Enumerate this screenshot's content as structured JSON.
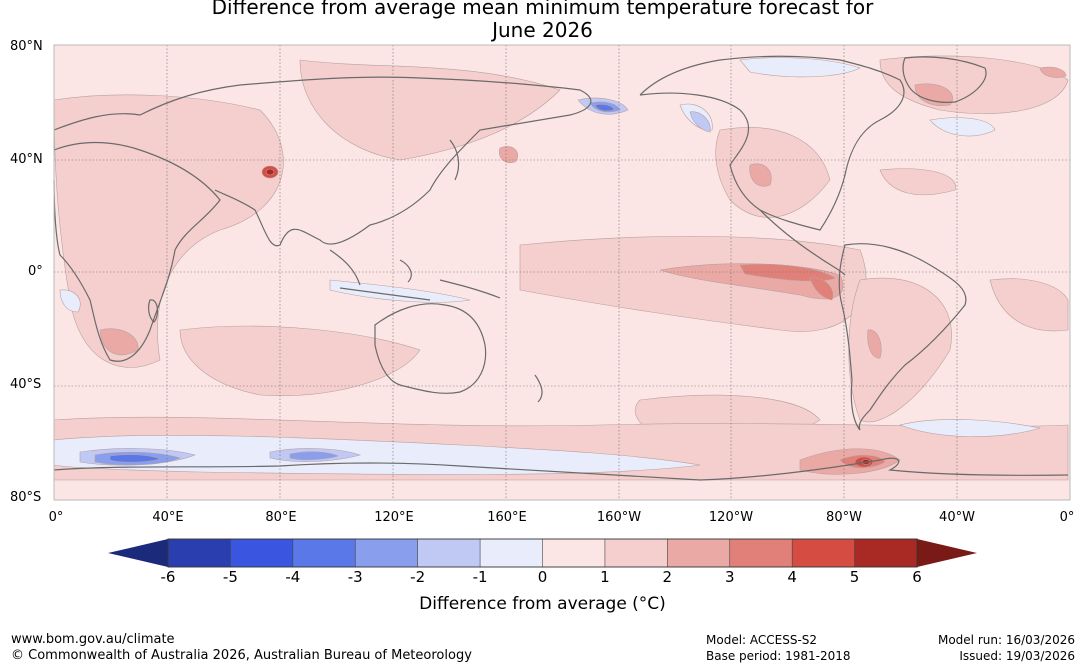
{
  "title": {
    "line1": "Difference from average mean minimum temperature forecast for",
    "line2": "June 2026"
  },
  "axes": {
    "lat_labels": [
      "80°N",
      "40°N",
      "0°",
      "40°S",
      "80°S"
    ],
    "lon_labels": [
      "0°",
      "40°E",
      "80°E",
      "120°E",
      "160°E",
      "160°W",
      "120°W",
      "80°W",
      "40°W",
      "0°"
    ]
  },
  "colorbar": {
    "ticks": [
      "-6",
      "-5",
      "-4",
      "-3",
      "-2",
      "-1",
      "0",
      "1",
      "2",
      "3",
      "4",
      "5",
      "6"
    ],
    "label": "Difference from average (°C)",
    "colors": [
      "#1b2a7a",
      "#2b3eb0",
      "#3a56e0",
      "#5a78e8",
      "#8a9eee",
      "#c0c8f4",
      "#e8ecfb",
      "#fbe6e5",
      "#f4cfcd",
      "#eba9a5",
      "#e08078",
      "#d44c42",
      "#a92a24",
      "#7a1a16"
    ]
  },
  "footer": {
    "url": "www.bom.gov.au/climate",
    "copyright": "© Commonwealth of Australia 2026, Australian Bureau of Meteorology",
    "model": "Model: ACCESS-S2",
    "base_period": "Base period: 1981-2018",
    "model_run": "Model run: 16/03/2026",
    "issued": "Issued: 19/03/2026"
  }
}
